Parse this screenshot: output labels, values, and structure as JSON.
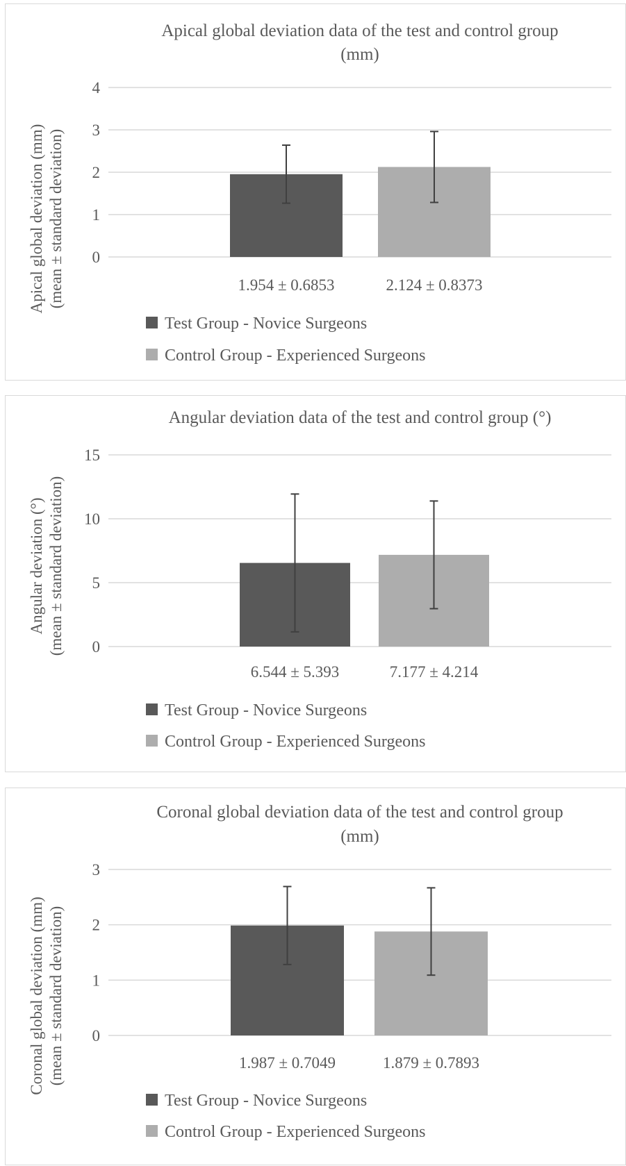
{
  "charts": [
    {
      "type": "bar",
      "title_lines": [
        "Apical global deviation data of the test and control group",
        "(mm)"
      ],
      "ylabel_lines": [
        "Apical global deviation  (mm)",
        "(mean ± standard deviation)"
      ],
      "ylim": [
        0,
        4
      ],
      "yticks": [
        "0",
        "1",
        "2",
        "3",
        "4"
      ],
      "categories": [
        "1.954 ± 0.6853",
        "2.124 ± 0.8373"
      ],
      "series": [
        {
          "name": "Test Group - Novice Surgeons",
          "value": 1.954,
          "error": 0.6853,
          "color": "#595959"
        },
        {
          "name": "Control Group - Experienced Surgeons",
          "value": 2.124,
          "error": 0.8373,
          "color": "#adadad"
        }
      ],
      "grid": true,
      "legend": "bottom"
    },
    {
      "type": "bar",
      "title_lines": [
        "Angular deviation data of the test and control group (°)"
      ],
      "ylabel_lines": [
        "Angular deviation (°)",
        "(mean ± standard deviation)"
      ],
      "ylim": [
        0,
        15
      ],
      "yticks": [
        "0",
        "5",
        "10",
        "15"
      ],
      "categories": [
        "6.544 ± 5.393",
        "7.177 ± 4.214"
      ],
      "series": [
        {
          "name": "Test Group - Novice Surgeons",
          "value": 6.544,
          "error": 5.393,
          "color": "#595959"
        },
        {
          "name": "Control Group - Experienced Surgeons",
          "value": 7.177,
          "error": 4.214,
          "color": "#adadad"
        }
      ],
      "grid": true,
      "legend": "bottom"
    },
    {
      "type": "bar",
      "title_lines": [
        "Coronal global deviation data of the test and control group",
        "(mm)"
      ],
      "ylabel_lines": [
        "Coronal global deviation  (mm)",
        "(mean ± standard deviation)"
      ],
      "ylim": [
        0,
        3
      ],
      "yticks": [
        "0",
        "1",
        "2",
        "3"
      ],
      "categories": [
        "1.987 ± 0.7049",
        "1.879 ± 0.7893"
      ],
      "series": [
        {
          "name": "Test Group - Novice Surgeons",
          "value": 1.987,
          "error": 0.7049,
          "color": "#595959"
        },
        {
          "name": "Control Group - Experienced Surgeons",
          "value": 1.879,
          "error": 0.7893,
          "color": "#adadad"
        }
      ],
      "grid": true,
      "legend": "bottom"
    }
  ]
}
